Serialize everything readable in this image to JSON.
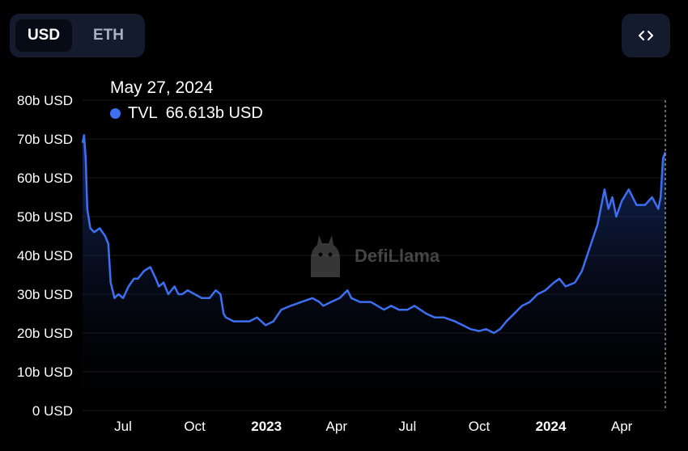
{
  "toggle": {
    "options": [
      "USD",
      "ETH"
    ],
    "selected": "USD"
  },
  "embed_icon": "code-brackets-icon",
  "tooltip": {
    "date": "May 27, 2024",
    "series": "TVL",
    "value": "66.613b USD"
  },
  "watermark": "DefiLlama",
  "colors": {
    "line": "#3d6ff2",
    "tooltip_dot": "#3d6ff2",
    "background": "#000000"
  },
  "chart_data": {
    "type": "area",
    "title": "",
    "xlabel": "",
    "ylabel": "",
    "ylim": [
      0,
      80
    ],
    "y_unit": "b USD",
    "y_ticks": [
      "0 USD",
      "10b USD",
      "20b USD",
      "30b USD",
      "40b USD",
      "50b USD",
      "60b USD",
      "70b USD",
      "80b USD"
    ],
    "x_ticks": [
      {
        "label": "Jul",
        "date": "2022-07-01",
        "bold": false
      },
      {
        "label": "Oct",
        "date": "2022-10-01",
        "bold": false
      },
      {
        "label": "2023",
        "date": "2023-01-01",
        "bold": true
      },
      {
        "label": "Apr",
        "date": "2023-04-01",
        "bold": false
      },
      {
        "label": "Jul",
        "date": "2023-07-01",
        "bold": false
      },
      {
        "label": "Oct",
        "date": "2023-10-01",
        "bold": false
      },
      {
        "label": "2024",
        "date": "2024-01-01",
        "bold": true
      },
      {
        "label": "Apr",
        "date": "2024-04-01",
        "bold": false
      }
    ],
    "xlim": [
      "2022-05-10",
      "2024-05-27"
    ],
    "grid": true,
    "series": [
      {
        "name": "TVL",
        "x": [
          "2022-05-10",
          "2022-05-12",
          "2022-05-14",
          "2022-05-16",
          "2022-05-20",
          "2022-05-25",
          "2022-06-01",
          "2022-06-08",
          "2022-06-12",
          "2022-06-15",
          "2022-06-20",
          "2022-06-25",
          "2022-07-01",
          "2022-07-08",
          "2022-07-15",
          "2022-07-20",
          "2022-07-28",
          "2022-08-05",
          "2022-08-12",
          "2022-08-16",
          "2022-08-22",
          "2022-08-28",
          "2022-09-05",
          "2022-09-10",
          "2022-09-15",
          "2022-09-22",
          "2022-10-01",
          "2022-10-10",
          "2022-10-20",
          "2022-10-28",
          "2022-11-03",
          "2022-11-07",
          "2022-11-10",
          "2022-11-20",
          "2022-11-30",
          "2022-12-10",
          "2022-12-20",
          "2022-12-31",
          "2023-01-10",
          "2023-01-20",
          "2023-02-01",
          "2023-02-15",
          "2023-03-01",
          "2023-03-10",
          "2023-03-15",
          "2023-03-25",
          "2023-04-05",
          "2023-04-15",
          "2023-04-20",
          "2023-05-01",
          "2023-05-15",
          "2023-06-01",
          "2023-06-10",
          "2023-06-20",
          "2023-07-01",
          "2023-07-10",
          "2023-07-25",
          "2023-08-05",
          "2023-08-17",
          "2023-08-31",
          "2023-09-10",
          "2023-09-20",
          "2023-10-01",
          "2023-10-10",
          "2023-10-20",
          "2023-10-28",
          "2023-11-05",
          "2023-11-15",
          "2023-11-25",
          "2023-12-05",
          "2023-12-15",
          "2023-12-25",
          "2024-01-05",
          "2024-01-12",
          "2024-01-20",
          "2024-02-01",
          "2024-02-10",
          "2024-02-20",
          "2024-03-01",
          "2024-03-05",
          "2024-03-10",
          "2024-03-15",
          "2024-03-20",
          "2024-03-25",
          "2024-04-01",
          "2024-04-10",
          "2024-04-15",
          "2024-04-20",
          "2024-05-01",
          "2024-05-10",
          "2024-05-18",
          "2024-05-21",
          "2024-05-24",
          "2024-05-27"
        ],
        "values": [
          69,
          71,
          65,
          52,
          47,
          46,
          47,
          45,
          43,
          33,
          29,
          30,
          29,
          32,
          34,
          34,
          36,
          37,
          34,
          32,
          33,
          30,
          32,
          30,
          30,
          31,
          30,
          29,
          29,
          31,
          30,
          25,
          24,
          23,
          23,
          23,
          24,
          22,
          23,
          26,
          27,
          28,
          29,
          28,
          27,
          28,
          29,
          31,
          29,
          28,
          28,
          26,
          27,
          26,
          26,
          27,
          25,
          24,
          24,
          23,
          22,
          21,
          20.5,
          21,
          20,
          21,
          23,
          25,
          27,
          28,
          30,
          31,
          33,
          34,
          32,
          33,
          36,
          42,
          48,
          52,
          57,
          52,
          55,
          50,
          54,
          57,
          55,
          53,
          53,
          55,
          52,
          55,
          65,
          66.6
        ]
      }
    ]
  }
}
